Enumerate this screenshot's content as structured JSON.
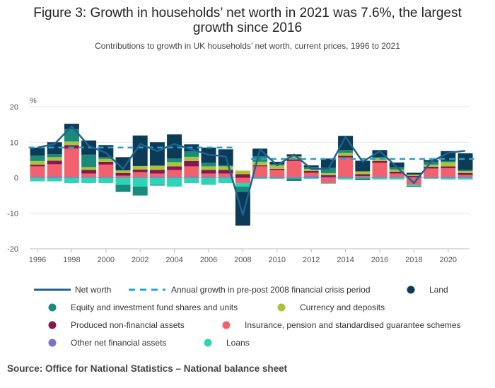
{
  "title_line1": "Figure 3: Growth in households’ net worth in 2021 was 7.6%, the largest",
  "title_line2": "growth since 2016",
  "subtitle": "Contributions to growth in UK households’ net worth, current prices, 1996 to 2021",
  "source": "Source: Office for National Statistics – National balance sheet",
  "colors": {
    "land": "#0b3b56",
    "equity": "#1a8a7a",
    "currency": "#a8c43a",
    "produced": "#86174f",
    "insurance": "#f2626e",
    "other_fin": "#8070c8",
    "loans": "#2ed4b8",
    "net_worth_line": "#1f628f",
    "annual_growth_line": "#27a0cc"
  },
  "legend": [
    {
      "key": "net_worth",
      "label": "Net worth",
      "marker": "line"
    },
    {
      "key": "annual_growth",
      "label": "Annual growth in pre-post 2008 financial crisis period",
      "marker": "dashed"
    },
    {
      "key": "land",
      "label": "Land",
      "marker": "dot"
    },
    {
      "key": "equity",
      "label": "Equity and investment fund shares and units",
      "marker": "dot"
    },
    {
      "key": "currency",
      "label": "Currency and deposits",
      "marker": "dot"
    },
    {
      "key": "produced",
      "label": "Produced non-financial assets",
      "marker": "dot"
    },
    {
      "key": "insurance",
      "label": "Insurance, pension and standardised guarantee schemes",
      "marker": "dot"
    },
    {
      "key": "other_fin",
      "label": "Other net financial assets",
      "marker": "dot"
    },
    {
      "key": "loans",
      "label": "Loans",
      "marker": "dot"
    }
  ],
  "chart_data": {
    "type": "bar",
    "stacked": true,
    "ylabel": "%",
    "ylim": [
      -20,
      20
    ],
    "yticks": [
      20,
      10,
      0,
      -10,
      -20
    ],
    "xticks": [
      "1996",
      "1998",
      "2000",
      "2002",
      "2004",
      "2006",
      "2008",
      "2010",
      "2012",
      "2014",
      "2016",
      "2018",
      "2020"
    ],
    "categories": [
      "1996",
      "1997",
      "1998",
      "1999",
      "2000",
      "2001",
      "2002",
      "2003",
      "2004",
      "2005",
      "2006",
      "2007",
      "2008",
      "2009",
      "2010",
      "2011",
      "2012",
      "2013",
      "2014",
      "2015",
      "2016",
      "2017",
      "2018",
      "2019",
      "2020",
      "2021"
    ],
    "series": [
      {
        "key": "other_fin",
        "name": "Other net financial assets",
        "values": [
          0.2,
          0.3,
          0.2,
          0.2,
          0.2,
          0.1,
          0.1,
          0.2,
          0.2,
          0.2,
          0.2,
          0.2,
          0,
          0.2,
          0.2,
          0.2,
          0.4,
          0.2,
          0.2,
          0.2,
          0.2,
          0.2,
          0.2,
          0.1,
          0.2,
          0.3
        ]
      },
      {
        "key": "insurance",
        "name": "Insurance, pension and standardised guarantee schemes",
        "values": [
          3,
          3.5,
          8,
          1,
          3.5,
          0.5,
          1.5,
          1,
          2,
          3,
          1,
          1,
          -1.5,
          3,
          2,
          4.5,
          1,
          -1.5,
          5.5,
          0.3,
          4,
          1,
          -2,
          2.5,
          2.5,
          0.5
        ]
      },
      {
        "key": "loans",
        "name": "Loans",
        "values": [
          -1,
          -1,
          -1.5,
          -1.5,
          -1.5,
          -2,
          -2.5,
          -2,
          -2.5,
          -1.5,
          -2,
          -1.5,
          -1,
          -0.3,
          -0.3,
          -0.2,
          -0.3,
          -0.2,
          -0.5,
          -0.2,
          -0.5,
          -0.5,
          -0.3,
          -0.3,
          -0.5,
          -0.5
        ]
      },
      {
        "key": "produced",
        "name": "Produced non-financial assets",
        "values": [
          0.5,
          1,
          1,
          1,
          0.8,
          0.7,
          0.7,
          1,
          1,
          1.5,
          1,
          1,
          1,
          0.3,
          0.3,
          0.5,
          0.5,
          0.5,
          0.5,
          0.5,
          0.5,
          0.5,
          0.3,
          0.5,
          0.5,
          0.5
        ]
      },
      {
        "key": "currency",
        "name": "Currency and deposits",
        "values": [
          1,
          1,
          1,
          0.8,
          0.8,
          0.8,
          1,
          1.2,
          1.2,
          1.2,
          1,
          1,
          1,
          1,
          1,
          0.8,
          0.6,
          0.6,
          0.8,
          0.8,
          0.8,
          0.6,
          0.4,
          0.6,
          1.2,
          0.6
        ]
      },
      {
        "key": "equity",
        "name": "Equity and investment fund shares and units",
        "values": [
          1.5,
          0.8,
          3.5,
          3.5,
          0.5,
          -2,
          -2.5,
          -0.2,
          1,
          1.5,
          1,
          0.3,
          -1.5,
          1.5,
          0.3,
          -0.7,
          0.5,
          1.5,
          0.8,
          -0.5,
          0.3,
          0.7,
          -0.3,
          0.8,
          0.3,
          0.3
        ]
      },
      {
        "key": "land",
        "name": "Land",
        "values": [
          2.3,
          3.4,
          1.5,
          4,
          3.4,
          3.7,
          8.6,
          6.6,
          6.8,
          2,
          4.3,
          4.5,
          -9.5,
          2.2,
          0.7,
          0.6,
          0.5,
          2.6,
          4,
          3,
          2,
          1.3,
          0.5,
          0.5,
          2.8,
          4.7
        ]
      }
    ],
    "net_worth": [
      8.5,
      9.5,
      14.5,
      9,
      7,
      2.5,
      9.5,
      7.5,
      9.5,
      8,
      6.5,
      6,
      -10.5,
      8,
      3.5,
      6.5,
      2.5,
      2.5,
      11.5,
      4.5,
      7.5,
      3,
      -1.5,
      4.5,
      7,
      7.6
    ],
    "annual_growth_periods": [
      {
        "from": "1996",
        "to": "2007",
        "value": 8.5
      },
      {
        "from": "2009",
        "to": "2021",
        "value": 5.3
      }
    ]
  }
}
